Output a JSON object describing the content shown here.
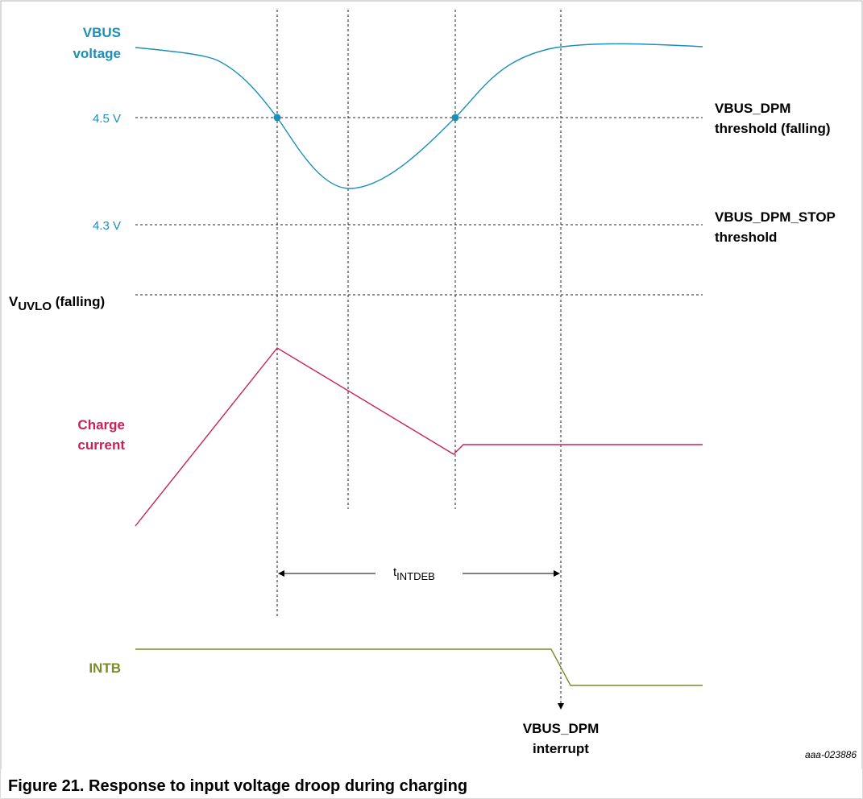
{
  "labels": {
    "vbus_line1": "VBUS",
    "vbus_line2": "voltage",
    "v45": "4.5 V",
    "v43": "4.3 V",
    "vuvlo_v": "V",
    "vuvlo_sub": "UVLO",
    "vuvlo_rest": " (falling)",
    "dpm_line1": "VBUS_DPM",
    "dpm_line2": "threshold (falling)",
    "stop_line1": "VBUS_DPM_STOP",
    "stop_line2": "threshold",
    "charge_line1": "Charge",
    "charge_line2": "current",
    "t_main": "t",
    "t_sub": "INTDEB",
    "intb": "INTB",
    "interrupt_line1": "VBUS_DPM",
    "interrupt_line2": "interrupt",
    "ref": "aaa-023886"
  },
  "caption": "Figure 21.  Response to input voltage droop during charging",
  "colors": {
    "vbus": "#1a8fba",
    "charge": "#c8205b",
    "intb": "#7d8a2a",
    "dashed": "#222222",
    "text": "#000000"
  }
}
